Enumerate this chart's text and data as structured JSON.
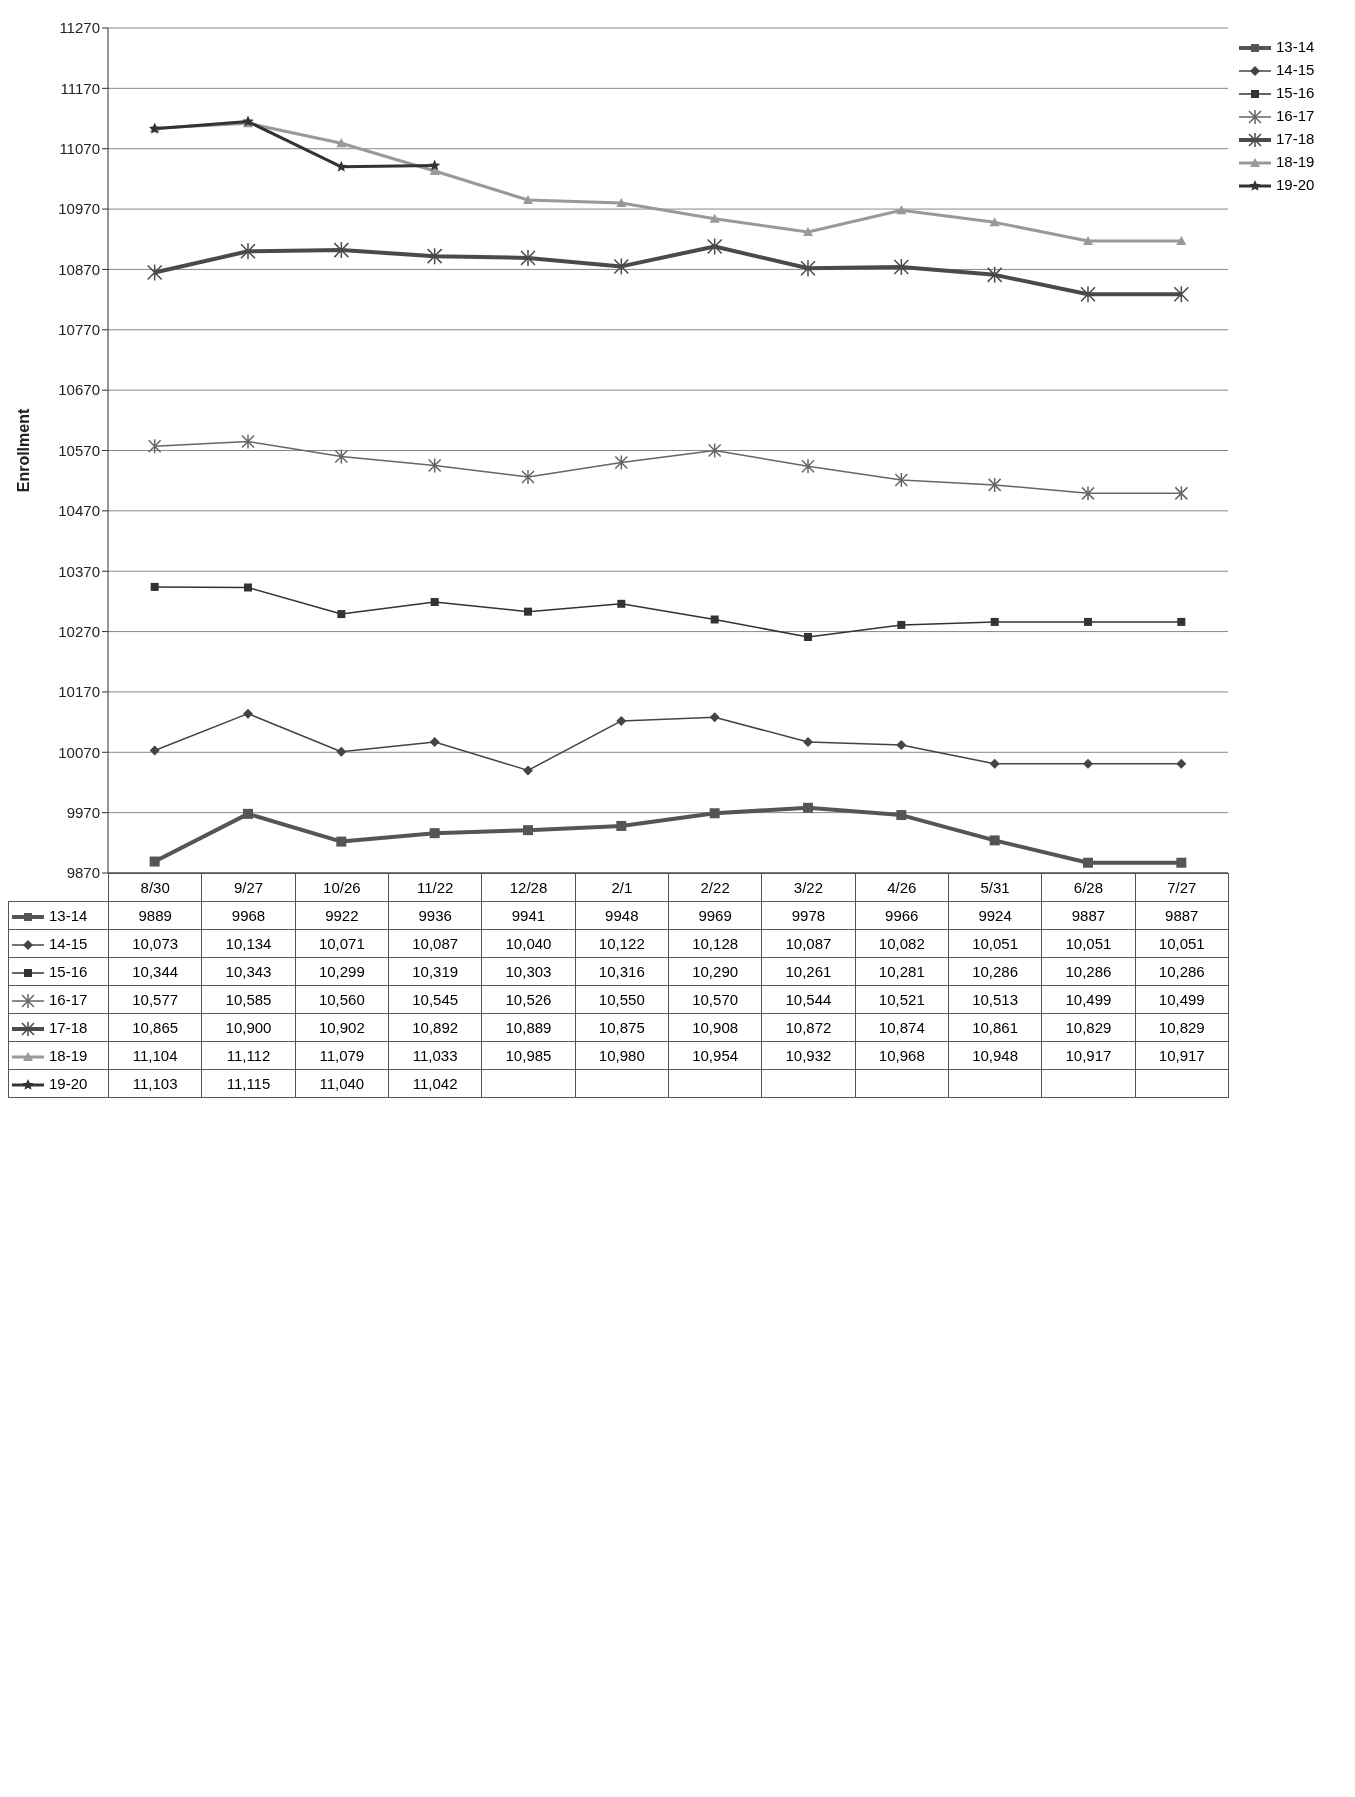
{
  "chart_data": {
    "type": "line",
    "ylabel": "Enrollment",
    "categories": [
      "8/30",
      "9/27",
      "10/26",
      "11/22",
      "12/28",
      "2/1",
      "2/22",
      "3/22",
      "4/26",
      "5/31",
      "6/28",
      "7/27"
    ],
    "ylim": [
      9870,
      11270
    ],
    "yticks": [
      9870,
      9970,
      10070,
      10170,
      10270,
      10370,
      10470,
      10570,
      10670,
      10770,
      10870,
      10970,
      11070,
      11170,
      11270
    ],
    "grid": "y",
    "legend": "right",
    "series": [
      {
        "name": "13-14",
        "color": "#555555",
        "marker": "square",
        "values": [
          9889,
          9968,
          9922,
          9936,
          9941,
          9948,
          9969,
          9978,
          9966,
          9924,
          9887,
          9887
        ],
        "value_labels": [
          "9889",
          "9968",
          "9922",
          "9936",
          "9941",
          "9948",
          "9969",
          "9978",
          "9966",
          "9924",
          "9887",
          "9887"
        ]
      },
      {
        "name": "14-15",
        "color": "#444444",
        "marker": "diamond",
        "values": [
          10073,
          10134,
          10071,
          10087,
          10040,
          10122,
          10128,
          10087,
          10082,
          10051,
          10051,
          10051
        ],
        "value_labels": [
          "10,073",
          "10,134",
          "10,071",
          "10,087",
          "10,040",
          "10,122",
          "10,128",
          "10,087",
          "10,082",
          "10,051",
          "10,051",
          "10,051"
        ]
      },
      {
        "name": "15-16",
        "color": "#333333",
        "marker": "square",
        "values": [
          10344,
          10343,
          10299,
          10319,
          10303,
          10316,
          10290,
          10261,
          10281,
          10286,
          10286,
          10286
        ],
        "value_labels": [
          "10,344",
          "10,343",
          "10,299",
          "10,319",
          "10,303",
          "10,316",
          "10,290",
          "10,261",
          "10,281",
          "10,286",
          "10,286",
          "10,286"
        ]
      },
      {
        "name": "16-17",
        "color": "#666666",
        "marker": "cross",
        "values": [
          10577,
          10585,
          10560,
          10545,
          10526,
          10550,
          10570,
          10544,
          10521,
          10513,
          10499,
          10499
        ],
        "value_labels": [
          "10,577",
          "10,585",
          "10,560",
          "10,545",
          "10,526",
          "10,550",
          "10,570",
          "10,544",
          "10,521",
          "10,513",
          "10,499",
          "10,499"
        ]
      },
      {
        "name": "17-18",
        "color": "#4a4a4a",
        "marker": "cross",
        "values": [
          10865,
          10900,
          10902,
          10892,
          10889,
          10875,
          10908,
          10872,
          10874,
          10861,
          10829,
          10829
        ],
        "value_labels": [
          "10,865",
          "10,900",
          "10,902",
          "10,892",
          "10,889",
          "10,875",
          "10,908",
          "10,872",
          "10,874",
          "10,861",
          "10,829",
          "10,829"
        ]
      },
      {
        "name": "18-19",
        "color": "#999999",
        "marker": "triangle",
        "values": [
          11104,
          11112,
          11079,
          11033,
          10985,
          10980,
          10954,
          10932,
          10968,
          10948,
          10917,
          10917
        ],
        "value_labels": [
          "11,104",
          "11,112",
          "11,079",
          "11,033",
          "10,985",
          "10,980",
          "10,954",
          "10,932",
          "10,968",
          "10,948",
          "10,917",
          "10,917"
        ]
      },
      {
        "name": "19-20",
        "color": "#333333",
        "marker": "star",
        "values": [
          11103,
          11115,
          11040,
          11042,
          null,
          null,
          null,
          null,
          null,
          null,
          null,
          null
        ],
        "value_labels": [
          "11,103",
          "11,115",
          "11,040",
          "11,042",
          null,
          null,
          null,
          null,
          null,
          null,
          null,
          null
        ]
      }
    ]
  }
}
